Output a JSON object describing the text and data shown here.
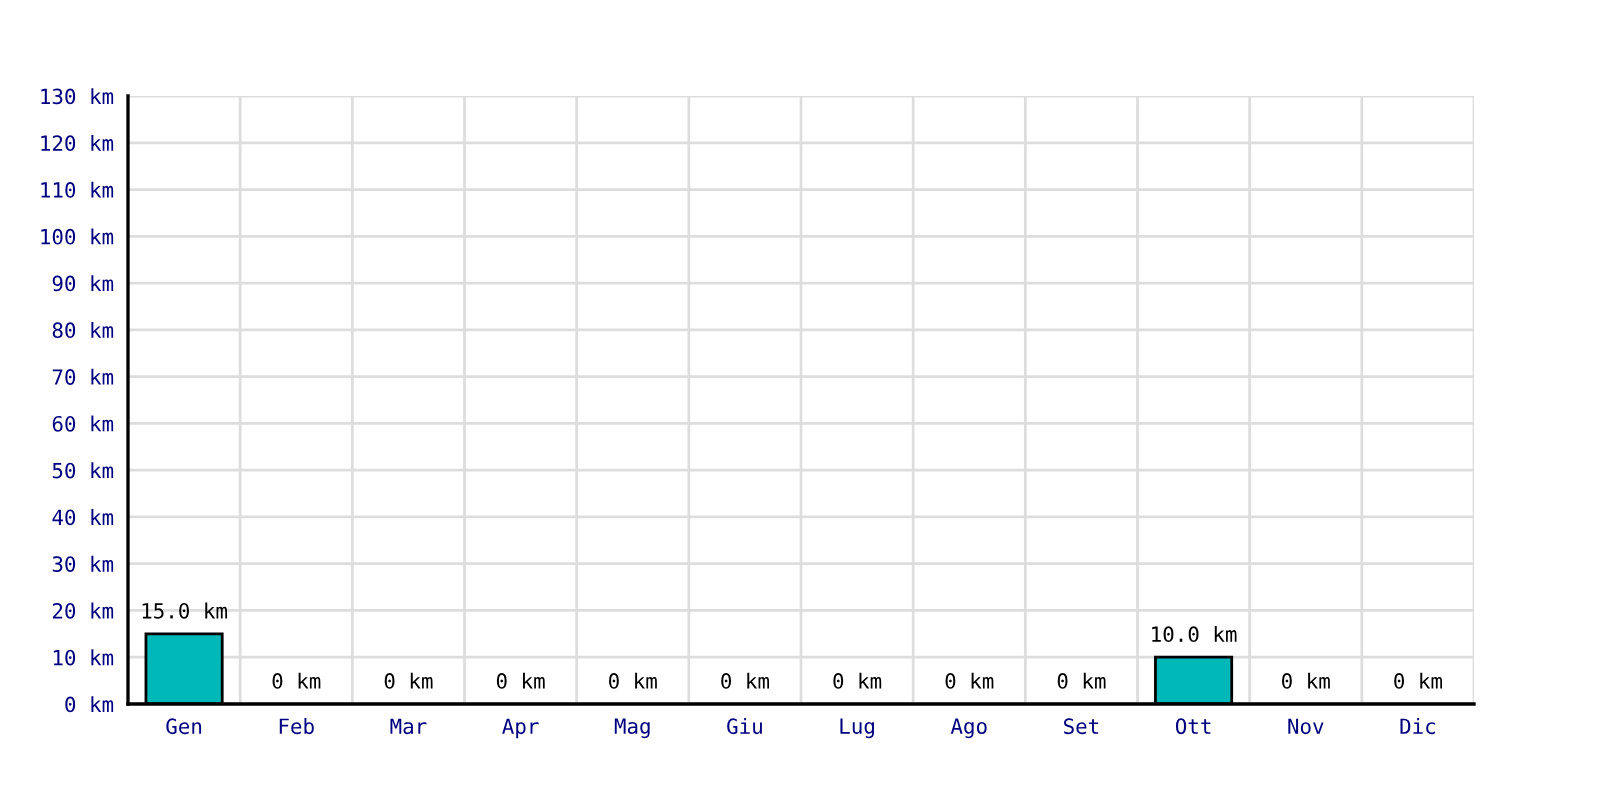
{
  "chart_data": {
    "type": "bar",
    "categories": [
      "Gen",
      "Feb",
      "Mar",
      "Apr",
      "Mag",
      "Giu",
      "Lug",
      "Ago",
      "Set",
      "Ott",
      "Nov",
      "Dic"
    ],
    "values": [
      15,
      0,
      0,
      0,
      0,
      0,
      0,
      0,
      0,
      10,
      0,
      0
    ],
    "value_labels": [
      "15.0 km",
      "0 km",
      "0 km",
      "0 km",
      "0 km",
      "0 km",
      "0 km",
      "0 km",
      "0 km",
      "10.0 km",
      "0 km",
      "0 km"
    ],
    "color": "#00b8b8",
    "ylim": [
      0,
      130
    ],
    "yticks": [
      {
        "value": 0,
        "label": "0 km"
      },
      {
        "value": 10,
        "label": "10 km"
      },
      {
        "value": 20,
        "label": "20 km"
      },
      {
        "value": 30,
        "label": "30 km"
      },
      {
        "value": 40,
        "label": "40 km"
      },
      {
        "value": 50,
        "label": "50 km"
      },
      {
        "value": 60,
        "label": "60 km"
      },
      {
        "value": 70,
        "label": "70 km"
      },
      {
        "value": 80,
        "label": "80 km"
      },
      {
        "value": 90,
        "label": "90 km"
      },
      {
        "value": 100,
        "label": "100 km"
      },
      {
        "value": 110,
        "label": "110 km"
      },
      {
        "value": 120,
        "label": "120 km"
      },
      {
        "value": 130,
        "label": "130 km"
      }
    ],
    "grid": true
  }
}
